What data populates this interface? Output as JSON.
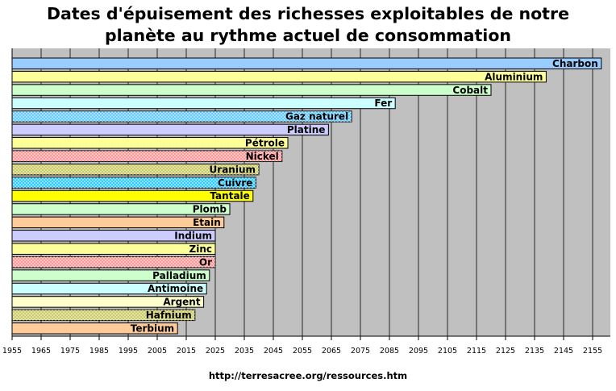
{
  "title_line1": "Dates d'épuisement des richesses exploitables de notre",
  "title_line2": "planète au rythme actuel de consommation",
  "source": "http://terresacree.org/ressources.htm",
  "chart_data": {
    "type": "bar",
    "orientation": "horizontal",
    "title": "Dates d'épuisement des richesses exploitables de notre planète au rythme actuel de consommation",
    "xlim": [
      1955,
      2160
    ],
    "x_ticks": [
      1955,
      1965,
      1975,
      1985,
      1995,
      2005,
      2015,
      2025,
      2035,
      2045,
      2055,
      2065,
      2075,
      2085,
      2095,
      2105,
      2115,
      2125,
      2135,
      2145,
      2155
    ],
    "grid": true,
    "plot_background": "#c0c0c0",
    "categories": [
      "Charbon",
      "Aluminium",
      "Cobalt",
      "Fer",
      "Gaz naturel",
      "Platine",
      "Pétrole",
      "Nickel",
      "Uranium",
      "Cuivre",
      "Tantale",
      "Plomb",
      "Etain",
      "Indium",
      "Zinc",
      "Or",
      "Palladium",
      "Antimoine",
      "Argent",
      "Hafnium",
      "Terbium"
    ],
    "values": [
      2158,
      2139,
      2120,
      2087,
      2072,
      2064,
      2050,
      2048,
      2040,
      2039,
      2038,
      2030,
      2028,
      2025,
      2025,
      2025,
      2023,
      2022,
      2021,
      2018,
      2012
    ],
    "colors": [
      "#99ccff",
      "#ffff99",
      "#ccffcc",
      "#ccffff",
      "#66ccff",
      "#ccccff",
      "#ffff99",
      "#ff9999",
      "#cccc66",
      "#33ccff",
      "#ffff00",
      "#ccffcc",
      "#ffcc99",
      "#ccccff",
      "#ffff99",
      "#ff9999",
      "#ccffcc",
      "#ccffff",
      "#ffffcc",
      "#cccc66",
      "#ffcc99"
    ],
    "patterned": [
      false,
      false,
      false,
      false,
      true,
      false,
      false,
      true,
      true,
      true,
      false,
      false,
      false,
      false,
      false,
      true,
      false,
      false,
      false,
      true,
      false
    ]
  }
}
